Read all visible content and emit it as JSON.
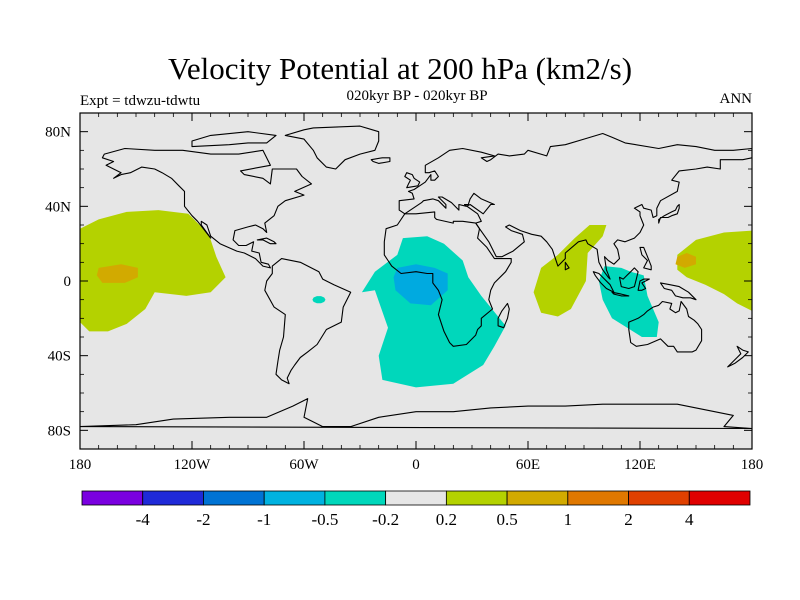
{
  "title": "Velocity Potential at 200 hPa (km2/s)",
  "subtitle": "020kyr BP - 020kyr BP",
  "left_label": "Expt = tdwzu-tdwtu",
  "right_label": "ANN",
  "colors": {
    "land_background": "#e6e6e6",
    "coast": "#000000",
    "light_green": "#b4d200",
    "orange": "#d2aa00",
    "teal": "#00d7bb",
    "light_blue": "#00aae0"
  },
  "chart_data": {
    "type": "heatmap",
    "projection": "cylindrical-equidistant",
    "lon_range": [
      -180,
      180
    ],
    "lat_range": [
      -90,
      90
    ],
    "x_ticks": [
      "180",
      "120W",
      "60W",
      "0",
      "60E",
      "120E",
      "180"
    ],
    "y_ticks": [
      "80N",
      "40N",
      "0",
      "40S",
      "80S"
    ],
    "colorbar": {
      "colors": [
        "#7a00e0",
        "#1f2ad8",
        "#0073d4",
        "#00b2e0",
        "#00d7bb",
        "#e6e6e6",
        "#b4d200",
        "#d2aa00",
        "#e07800",
        "#e04000",
        "#e00000"
      ],
      "labels": [
        "-4",
        "-2",
        "-1",
        "-0.5",
        "-0.2",
        "0.2",
        "0.5",
        "1",
        "2",
        "4"
      ]
    },
    "features": [
      {
        "name": "central-pacific-positive",
        "level": "0.2 to 0.5",
        "lon_center": -160,
        "lat_center": 10
      },
      {
        "name": "central-pacific-maximum",
        "level": "0.5 to 1",
        "lon_center": -160,
        "lat_center": 5
      },
      {
        "name": "africa-atlantic-negative",
        "level": "-0.5 to -0.2",
        "lon_center": 10,
        "lat_center": -20
      },
      {
        "name": "central-africa-minimum",
        "level": "-1 to -0.5",
        "lon_center": 5,
        "lat_center": -5
      },
      {
        "name": "indian-ocean-positive",
        "level": "0.2 to 0.5",
        "lon_center": 80,
        "lat_center": 0
      },
      {
        "name": "maritime-continent-negative",
        "level": "-0.5 to -0.2",
        "lon_center": 115,
        "lat_center": -10
      },
      {
        "name": "west-pacific-positive",
        "level": "0.2 to 0.5",
        "lon_center": 160,
        "lat_center": 10
      },
      {
        "name": "west-pacific-maximum",
        "level": "0.5 to 1",
        "lon_center": 145,
        "lat_center": 10
      }
    ]
  }
}
